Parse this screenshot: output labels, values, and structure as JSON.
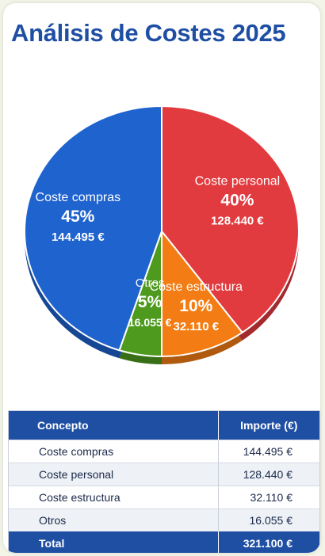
{
  "chart_data": {
    "type": "pie",
    "title": "Análisis de Costes 2025",
    "colors": {
      "Coste compras": "#1f63cf",
      "Coste personal": "#e23b3f",
      "Coste estructura": "#f37d14",
      "Otros": "#4e9a1e"
    },
    "slices": [
      {
        "label": "Coste personal",
        "percent_label": "40%",
        "percent": 40,
        "value_label": "128.440 €",
        "value": 128440
      },
      {
        "label": "Coste estructura",
        "percent_label": "10%",
        "percent": 10,
        "value_label": "32.110 €",
        "value": 32110
      },
      {
        "label": "Otros",
        "percent_label": "5%",
        "percent": 5,
        "value_label": "16.055 €",
        "value": 16055
      },
      {
        "label": "Coste compras",
        "percent_label": "45%",
        "percent": 45,
        "value_label": "144.495 €",
        "value": 144495
      }
    ]
  },
  "table": {
    "headers": {
      "concept": "Concepto",
      "amount": "Importe (€)"
    },
    "rows": [
      {
        "concept": "Coste compras",
        "amount": "144.495 €"
      },
      {
        "concept": "Coste personal",
        "amount": "128.440 €"
      },
      {
        "concept": "Coste estructura",
        "amount": "32.110 €"
      },
      {
        "concept": "Otros",
        "amount": "16.055 €"
      }
    ],
    "total": {
      "concept": "Total",
      "amount": "321.100 €"
    }
  }
}
